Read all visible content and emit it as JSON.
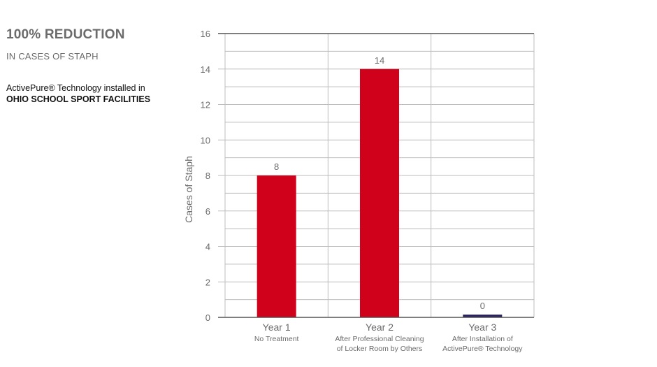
{
  "panel": {
    "headline": "100% REDUCTION",
    "subhead": "IN CASES OF STAPH",
    "description_line1": "ActivePure® Technology installed in",
    "description_line2": "OHIO SCHOOL SPORT FACILITIES"
  },
  "colors": {
    "bar_red": "#d0021b",
    "bar_navy": "#2a2560",
    "grid": "#bdbdbd",
    "axis": "#555555",
    "text_gray": "#6b6b6b"
  },
  "chart_data": {
    "type": "bar",
    "title": "",
    "xlabel": "",
    "ylabel": "Cases of Staph",
    "ylim": [
      0,
      16
    ],
    "y_ticks": [
      0,
      2,
      4,
      6,
      8,
      10,
      12,
      14,
      16
    ],
    "grid": true,
    "categories": [
      {
        "name": "Year 1",
        "sub": [
          "No Treatment"
        ]
      },
      {
        "name": "Year 2",
        "sub": [
          "After Professional Cleaning",
          "of Locker Room by Others"
        ]
      },
      {
        "name": "Year 3",
        "sub": [
          "After Installation of",
          "ActivePure® Technology"
        ]
      }
    ],
    "values": [
      8,
      14,
      0
    ],
    "data_labels": [
      "8",
      "14",
      "0"
    ],
    "bar_colors": [
      "#d0021b",
      "#d0021b",
      "#2a2560"
    ]
  }
}
